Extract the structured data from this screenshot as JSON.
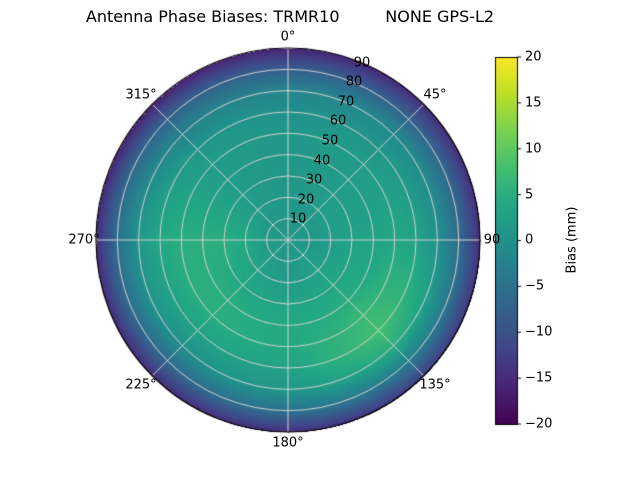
{
  "chart_data": {
    "type": "heatmap",
    "projection": "polar",
    "title": "Antenna Phase Biases: TRMR10         NONE GPS-L2",
    "theta_zero_location": "top",
    "theta_direction": "clockwise",
    "grid": true,
    "azimuth_labels": [
      "0°",
      "45°",
      "90",
      "135°",
      "180°",
      "225°",
      "270°",
      "315°"
    ],
    "radial_tick_labels": [
      "10",
      "20",
      "30",
      "40",
      "50",
      "60",
      "70",
      "80",
      "90"
    ],
    "radial_range": [
      0,
      90
    ],
    "azimuth_deg": [
      0,
      45,
      90,
      135,
      180,
      225,
      270,
      315,
      360
    ],
    "zenith_deg": [
      0,
      10,
      20,
      30,
      40,
      50,
      60,
      70,
      80,
      90
    ],
    "bias_mm": [
      [
        1,
        1,
        1,
        1,
        1,
        1,
        0,
        -2,
        -8,
        -16
      ],
      [
        1,
        1,
        2,
        2,
        2,
        2,
        1,
        -1,
        -7,
        -15
      ],
      [
        1,
        1,
        2,
        3,
        3,
        4,
        3,
        0,
        -6,
        -15
      ],
      [
        1,
        2,
        3,
        4,
        5,
        7,
        8,
        5,
        -3,
        -13
      ],
      [
        1,
        1,
        2,
        3,
        4,
        4,
        3,
        1,
        -5,
        -15
      ],
      [
        1,
        2,
        3,
        4,
        5,
        5,
        3,
        0,
        -6,
        -15
      ],
      [
        1,
        2,
        4,
        5,
        5,
        5,
        4,
        1,
        -5,
        -15
      ],
      [
        1,
        1,
        2,
        2,
        2,
        2,
        1,
        -2,
        -7,
        -16
      ],
      [
        1,
        1,
        1,
        1,
        1,
        1,
        0,
        -2,
        -8,
        -16
      ]
    ],
    "colorbar": {
      "label": "Bias (mm)",
      "vmin": -20,
      "vmax": 20,
      "ticks": [
        20,
        15,
        10,
        5,
        0,
        -5,
        -10,
        -15,
        -20
      ],
      "tick_labels": [
        "20",
        "15",
        "10",
        "5",
        "0",
        "−5",
        "−10",
        "−15",
        "−20"
      ]
    },
    "colormap": {
      "name": "viridis",
      "stops": [
        {
          "t": 0.0,
          "color": "#440154"
        },
        {
          "t": 0.1,
          "color": "#482475"
        },
        {
          "t": 0.2,
          "color": "#414487"
        },
        {
          "t": 0.3,
          "color": "#355f8d"
        },
        {
          "t": 0.4,
          "color": "#2a788e"
        },
        {
          "t": 0.5,
          "color": "#21918c"
        },
        {
          "t": 0.6,
          "color": "#22a884"
        },
        {
          "t": 0.7,
          "color": "#44bf70"
        },
        {
          "t": 0.8,
          "color": "#7ad151"
        },
        {
          "t": 0.9,
          "color": "#bddf26"
        },
        {
          "t": 1.0,
          "color": "#fde725"
        }
      ]
    },
    "grid_color": "#d0d0d0"
  }
}
